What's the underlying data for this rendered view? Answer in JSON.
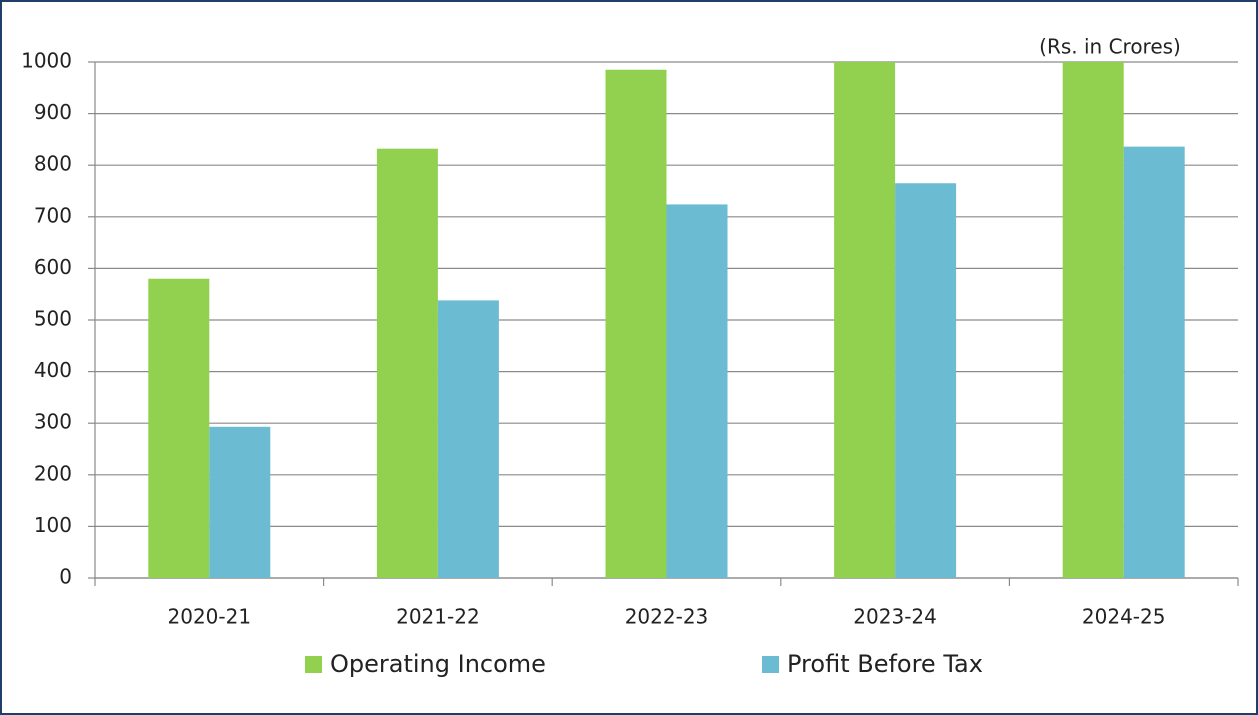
{
  "chart_data": {
    "type": "bar",
    "annotation": "(Rs. in Crores)",
    "categories": [
      "2020-21",
      "2021-22",
      "2022-23",
      "2023-24",
      "2024-25"
    ],
    "series": [
      {
        "name": "Operating Income",
        "color": "#92d050",
        "values": [
          580,
          832,
          985,
          1000,
          1000
        ]
      },
      {
        "name": "Profit Before Tax",
        "color": "#6bbbd2",
        "values": [
          293,
          538,
          724,
          765,
          836
        ]
      }
    ],
    "ylim": [
      0,
      1000
    ],
    "yticks": [
      0,
      100,
      200,
      300,
      400,
      500,
      600,
      700,
      800,
      900,
      1000
    ],
    "grid": true,
    "legend": "bottom"
  }
}
